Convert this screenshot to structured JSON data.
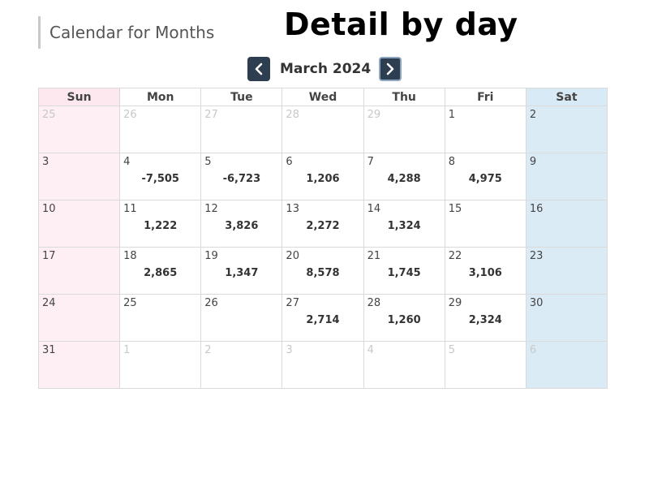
{
  "header": {
    "section_title": "Calendar for Months",
    "overlay_title": "Detail by day"
  },
  "nav": {
    "month_label": "March 2024",
    "prev_icon": "chevron-left-icon",
    "next_icon": "chevron-right-icon"
  },
  "colors": {
    "nav_button": "#2d3e50",
    "sunday_bg": "#fdeff4",
    "saturday_bg": "#dbebf6"
  },
  "calendar": {
    "weekdays": [
      "Sun",
      "Mon",
      "Tue",
      "Wed",
      "Thu",
      "Fri",
      "Sat"
    ],
    "weeks": [
      [
        {
          "day": "25",
          "value": "",
          "other": true
        },
        {
          "day": "26",
          "value": "",
          "other": true
        },
        {
          "day": "27",
          "value": "",
          "other": true
        },
        {
          "day": "28",
          "value": "",
          "other": true
        },
        {
          "day": "29",
          "value": "",
          "other": true
        },
        {
          "day": "1",
          "value": "",
          "other": false
        },
        {
          "day": "2",
          "value": "",
          "other": false
        }
      ],
      [
        {
          "day": "3",
          "value": "",
          "other": false
        },
        {
          "day": "4",
          "value": "-7,505",
          "other": false
        },
        {
          "day": "5",
          "value": "-6,723",
          "other": false
        },
        {
          "day": "6",
          "value": "1,206",
          "other": false
        },
        {
          "day": "7",
          "value": "4,288",
          "other": false
        },
        {
          "day": "8",
          "value": "4,975",
          "other": false
        },
        {
          "day": "9",
          "value": "",
          "other": false
        }
      ],
      [
        {
          "day": "10",
          "value": "",
          "other": false
        },
        {
          "day": "11",
          "value": "1,222",
          "other": false
        },
        {
          "day": "12",
          "value": "3,826",
          "other": false
        },
        {
          "day": "13",
          "value": "2,272",
          "other": false
        },
        {
          "day": "14",
          "value": "1,324",
          "other": false
        },
        {
          "day": "15",
          "value": "",
          "other": false
        },
        {
          "day": "16",
          "value": "",
          "other": false
        }
      ],
      [
        {
          "day": "17",
          "value": "",
          "other": false
        },
        {
          "day": "18",
          "value": "2,865",
          "other": false
        },
        {
          "day": "19",
          "value": "1,347",
          "other": false
        },
        {
          "day": "20",
          "value": "8,578",
          "other": false
        },
        {
          "day": "21",
          "value": "1,745",
          "other": false
        },
        {
          "day": "22",
          "value": "3,106",
          "other": false
        },
        {
          "day": "23",
          "value": "",
          "other": false
        }
      ],
      [
        {
          "day": "24",
          "value": "",
          "other": false
        },
        {
          "day": "25",
          "value": "",
          "other": false
        },
        {
          "day": "26",
          "value": "",
          "other": false
        },
        {
          "day": "27",
          "value": "2,714",
          "other": false
        },
        {
          "day": "28",
          "value": "1,260",
          "other": false
        },
        {
          "day": "29",
          "value": "2,324",
          "other": false
        },
        {
          "day": "30",
          "value": "",
          "other": false
        }
      ],
      [
        {
          "day": "31",
          "value": "",
          "other": false
        },
        {
          "day": "1",
          "value": "",
          "other": true
        },
        {
          "day": "2",
          "value": "",
          "other": true
        },
        {
          "day": "3",
          "value": "",
          "other": true
        },
        {
          "day": "4",
          "value": "",
          "other": true
        },
        {
          "day": "5",
          "value": "",
          "other": true
        },
        {
          "day": "6",
          "value": "",
          "other": true
        }
      ]
    ]
  }
}
